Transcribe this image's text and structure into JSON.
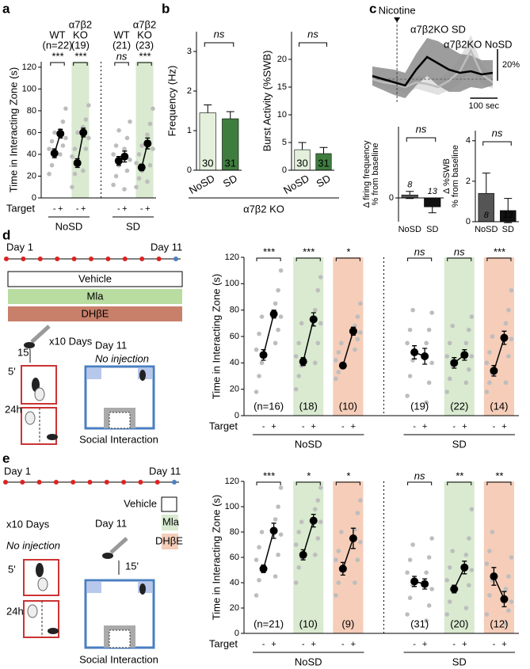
{
  "panels": [
    "a",
    "b",
    "c",
    "d",
    "e"
  ],
  "chart_data": [
    {
      "type": "paired-dot",
      "ylabel": "Time  in Interacting Zone (s)",
      "xlabel": "Target",
      "target_labels": [
        "-",
        "+"
      ],
      "ylim": [
        0,
        125
      ],
      "yticks": [
        0,
        20,
        40,
        60,
        80,
        100,
        120
      ],
      "conditions": [
        {
          "name": "NoSD",
          "groups": [
            {
              "header": [
                "WT",
                "(n=22)"
              ],
              "header_color": "#000000",
              "sig": "***",
              "minus": {
                "mean": 41,
                "sem": 4,
                "points": [
                  22,
                  30,
                  38,
                  45,
                  52,
                  60
                ]
              },
              "plus": {
                "mean": 59,
                "sem": 4,
                "points": [
                  40,
                  48,
                  55,
                  62,
                  70,
                  82
                ]
              }
            },
            {
              "header": [
                "α7β2",
                "KO",
                "(19)"
              ],
              "header_color": "#3b8a3b",
              "color": "#d9ead0",
              "sig": "***",
              "minus": {
                "mean": 32,
                "sem": 4,
                "points": [
                  10,
                  22,
                  30,
                  38,
                  45,
                  60
                ]
              },
              "plus": {
                "mean": 60,
                "sem": 4,
                "points": [
                  25,
                  45,
                  55,
                  65,
                  72,
                  85
                ]
              }
            }
          ]
        },
        {
          "name": "SD",
          "groups": [
            {
              "header": [
                "WT",
                "(21)"
              ],
              "header_color": "#000000",
              "sig": "ns",
              "minus": {
                "mean": 34,
                "sem": 4,
                "points": [
                  12,
                  20,
                  30,
                  40,
                  48,
                  62
                ]
              },
              "plus": {
                "mean": 38,
                "sem": 5,
                "points": [
                  8,
                  25,
                  35,
                  45,
                  55,
                  70
                ]
              }
            },
            {
              "header": [
                "α7β2",
                "KO",
                "(23)"
              ],
              "header_color": "#3b8a3b",
              "color": "#d9ead0",
              "sig": "***",
              "minus": {
                "mean": 28,
                "sem": 3,
                "points": [
                  10,
                  18,
                  25,
                  32,
                  40,
                  48
                ]
              },
              "plus": {
                "mean": 50,
                "sem": 5,
                "points": [
                  15,
                  30,
                  45,
                  58,
                  68,
                  82
                ]
              }
            }
          ]
        }
      ]
    },
    {
      "type": "bar",
      "ylabel": "Frequency (Hz)",
      "ylim": [
        0,
        3.5
      ],
      "yticks": [
        0,
        1,
        2,
        3
      ],
      "categories": [
        "NoSD",
        "SD"
      ],
      "values": [
        1.45,
        1.3
      ],
      "errors": [
        0.2,
        0.18
      ],
      "n_labels": [
        "30",
        "31"
      ],
      "colors": [
        "#e4f0dc",
        "#3f7d3f"
      ],
      "sig": "ns",
      "group_label": "α7β2 KO"
    },
    {
      "type": "bar",
      "ylabel": "Burst Activity (%SWB)",
      "ylim": [
        0,
        25
      ],
      "yticks": [
        0,
        5,
        10,
        15,
        20
      ],
      "categories": [
        "NoSD",
        "SD"
      ],
      "values": [
        3.7,
        3.0
      ],
      "errors": [
        1.3,
        1.1
      ],
      "n_labels": [
        "30",
        "31"
      ],
      "colors": [
        "#e4f0dc",
        "#3f7d3f"
      ],
      "sig": "ns"
    },
    {
      "type": "trace",
      "xlim": [
        0,
        440
      ],
      "ylim": [
        -15,
        35
      ],
      "x": [
        0,
        40,
        80,
        120,
        160,
        200,
        240,
        280,
        320,
        360,
        400,
        440
      ],
      "event": {
        "x": 90,
        "label": "Nicotine"
      },
      "series": [
        {
          "name": "α7β2KO SD",
          "color": "#000000",
          "band_color": "#8c8c8c",
          "values": [
            2,
            0,
            -2,
            -4,
            6,
            14,
            10,
            6,
            4,
            5,
            3,
            4
          ],
          "band": [
            6,
            7,
            8,
            8,
            10,
            12,
            14,
            14,
            12,
            10,
            9,
            8
          ]
        },
        {
          "name": "α7β2KO NoSD",
          "color": "#bdbdbd",
          "band_color": "#dcdcdc",
          "values": [
            0,
            -2,
            -3,
            -5,
            -2,
            -3,
            -5,
            -1,
            5,
            18,
            3,
            -2
          ],
          "band": [
            3,
            3,
            4,
            4,
            4,
            5,
            5,
            6,
            8,
            10,
            6,
            4
          ]
        }
      ],
      "scalebar_y": {
        "value": 20,
        "label": "20%"
      },
      "scalebar_x": {
        "value": 100,
        "label": "100 sec"
      }
    },
    {
      "type": "bar",
      "ylabel": [
        "Δ firing frequency",
        "% from baseline"
      ],
      "ylim": [
        -4,
        12
      ],
      "yticks": [
        0
      ],
      "categories": [
        "NoSD",
        "SD"
      ],
      "values": [
        0.5,
        -1.5
      ],
      "errors": [
        0.6,
        1.0
      ],
      "n_labels": [
        "8",
        "13"
      ],
      "colors": [
        "#555555",
        "#111111"
      ],
      "sig": "ns"
    },
    {
      "type": "bar",
      "ylabel": [
        "Δ %SWB",
        "% from baseline"
      ],
      "ylim": [
        0,
        4.5
      ],
      "yticks": [
        0,
        2,
        4
      ],
      "categories": [
        "NoSD",
        "SD"
      ],
      "values": [
        1.4,
        0.55
      ],
      "errors": [
        1.0,
        0.6
      ],
      "n_labels": [
        "8",
        "13"
      ],
      "colors": [
        "#555555",
        "#111111"
      ],
      "sig": "ns"
    },
    {
      "type": "paired-dot",
      "ylabel": "Time  in Interacting Zone (s)",
      "xlabel": "Target",
      "target_labels": [
        "-",
        "+"
      ],
      "ylim": [
        0,
        120
      ],
      "yticks": [
        0,
        20,
        40,
        60,
        80,
        100,
        120
      ],
      "conditions": [
        {
          "name": "NoSD",
          "groups": [
            {
              "n": "(n=16)",
              "sig": "***",
              "minus": {
                "mean": 46,
                "sem": 4,
                "points": [
                  18,
                  30,
                  40,
                  50,
                  62,
                  75
                ]
              },
              "plus": {
                "mean": 77,
                "sem": 3,
                "points": [
                  55,
                  65,
                  75,
                  85,
                  95,
                  110
                ]
              }
            },
            {
              "n": "(18)",
              "color": "#d9ead0",
              "sig": "***",
              "minus": {
                "mean": 41,
                "sem": 3,
                "points": [
                  20,
                  30,
                  38,
                  45,
                  55,
                  70
                ]
              },
              "plus": {
                "mean": 73,
                "sem": 5,
                "points": [
                  40,
                  55,
                  70,
                  80,
                  95,
                  105
                ]
              }
            },
            {
              "n": "(10)",
              "color": "#f5cdb9",
              "sig": "*",
              "minus": {
                "mean": 38,
                "sem": 2,
                "points": [
                  28,
                  33,
                  38,
                  42,
                  48,
                  55
                ]
              },
              "plus": {
                "mean": 64,
                "sem": 3,
                "points": [
                  50,
                  58,
                  63,
                  68,
                  75,
                  85
                ]
              }
            }
          ]
        },
        {
          "name": "SD",
          "groups": [
            {
              "n": "(19)",
              "sig": "ns",
              "minus": {
                "mean": 48,
                "sem": 5,
                "points": [
                  15,
                  30,
                  42,
                  55,
                  65,
                  80
                ]
              },
              "plus": {
                "mean": 45,
                "sem": 6,
                "points": [
                  10,
                  25,
                  40,
                  55,
                  65,
                  78
                ]
              }
            },
            {
              "n": "(22)",
              "color": "#d9ead0",
              "sig": "ns",
              "minus": {
                "mean": 40,
                "sem": 4,
                "points": [
                  18,
                  28,
                  38,
                  45,
                  55,
                  68
                ]
              },
              "plus": {
                "mean": 46,
                "sem": 4,
                "points": [
                  25,
                  35,
                  45,
                  55,
                  65,
                  75
                ]
              }
            },
            {
              "n": "(14)",
              "color": "#f5cdb9",
              "sig": "***",
              "minus": {
                "mean": 34,
                "sem": 4,
                "points": [
                  18,
                  25,
                  32,
                  40,
                  48,
                  60
                ]
              },
              "plus": {
                "mean": 59,
                "sem": 5,
                "points": [
                  25,
                  45,
                  58,
                  70,
                  80,
                  95
                ]
              }
            }
          ]
        }
      ]
    },
    {
      "type": "paired-dot",
      "ylabel": "Time  in Interacting Zone (s)",
      "xlabel": "Target",
      "target_labels": [
        "-",
        "+"
      ],
      "ylim": [
        0,
        120
      ],
      "yticks": [
        0,
        20,
        40,
        60,
        80,
        100,
        120
      ],
      "conditions": [
        {
          "name": "NoSD",
          "groups": [
            {
              "n": "(n=21)",
              "sig": "***",
              "minus": {
                "mean": 51,
                "sem": 3,
                "points": [
                  30,
                  42,
                  50,
                  58,
                  68,
                  80
                ]
              },
              "plus": {
                "mean": 81,
                "sem": 6,
                "points": [
                  45,
                  62,
                  78,
                  90,
                  100,
                  115
                ]
              }
            },
            {
              "n": "(10)",
              "color": "#d9ead0",
              "sig": "*",
              "minus": {
                "mean": 62,
                "sem": 4,
                "points": [
                  40,
                  52,
                  60,
                  70,
                  80,
                  88
                ]
              },
              "plus": {
                "mean": 89,
                "sem": 5,
                "points": [
                  62,
                  75,
                  88,
                  98,
                  105,
                  115
                ]
              }
            },
            {
              "n": "(9)",
              "color": "#f5cdb9",
              "sig": "*",
              "minus": {
                "mean": 51,
                "sem": 5,
                "points": [
                  30,
                  40,
                  50,
                  58,
                  65,
                  80
                ]
              },
              "plus": {
                "mean": 75,
                "sem": 8,
                "points": [
                  40,
                  58,
                  72,
                  82,
                  95,
                  105
                ]
              }
            }
          ]
        },
        {
          "name": "SD",
          "groups": [
            {
              "n": "(31)",
              "sig": "ns",
              "minus": {
                "mean": 41,
                "sem": 4,
                "points": [
                  15,
                  28,
                  38,
                  48,
                  58,
                  70
                ]
              },
              "plus": {
                "mean": 39,
                "sem": 4,
                "points": [
                  10,
                  22,
                  35,
                  48,
                  60,
                  75
                ]
              }
            },
            {
              "n": "(20)",
              "color": "#d9ead0",
              "sig": "**",
              "minus": {
                "mean": 35,
                "sem": 3,
                "points": [
                  15,
                  25,
                  35,
                  42,
                  52,
                  65
                ]
              },
              "plus": {
                "mean": 52,
                "sem": 5,
                "points": [
                  20,
                  38,
                  50,
                  62,
                  75,
                  98
                ]
              }
            },
            {
              "n": "(12)",
              "color": "#f5cdb9",
              "sig": "**",
              "minus": {
                "mean": 45,
                "sem": 7,
                "points": [
                  15,
                  30,
                  42,
                  55,
                  65,
                  80
                ]
              },
              "plus": {
                "mean": 27,
                "sem": 6,
                "points": [
                  8,
                  18,
                  25,
                  35,
                  45,
                  60
                ]
              }
            }
          ]
        }
      ]
    }
  ],
  "diagrams": {
    "d": {
      "start": "Day 1",
      "end": "Day 11",
      "treatments": [
        "Vehicle",
        "Mla",
        "DHβE"
      ],
      "repeat": "x10 Days",
      "delay": "15'",
      "test1": "5'",
      "test2": "24h",
      "test_day": "Day 11",
      "test_note": "No injection",
      "test_name": "Social Interaction"
    },
    "e": {
      "start": "Day 1",
      "end": "Day 11",
      "treatments": [
        "Vehicle",
        "Mla",
        "DHβE"
      ],
      "repeat": "x10 Days",
      "note": "No injection",
      "test1": "5'",
      "test2": "24h",
      "test_day": "Day 11",
      "delay": "15'",
      "test_name": "Social Interaction"
    }
  }
}
